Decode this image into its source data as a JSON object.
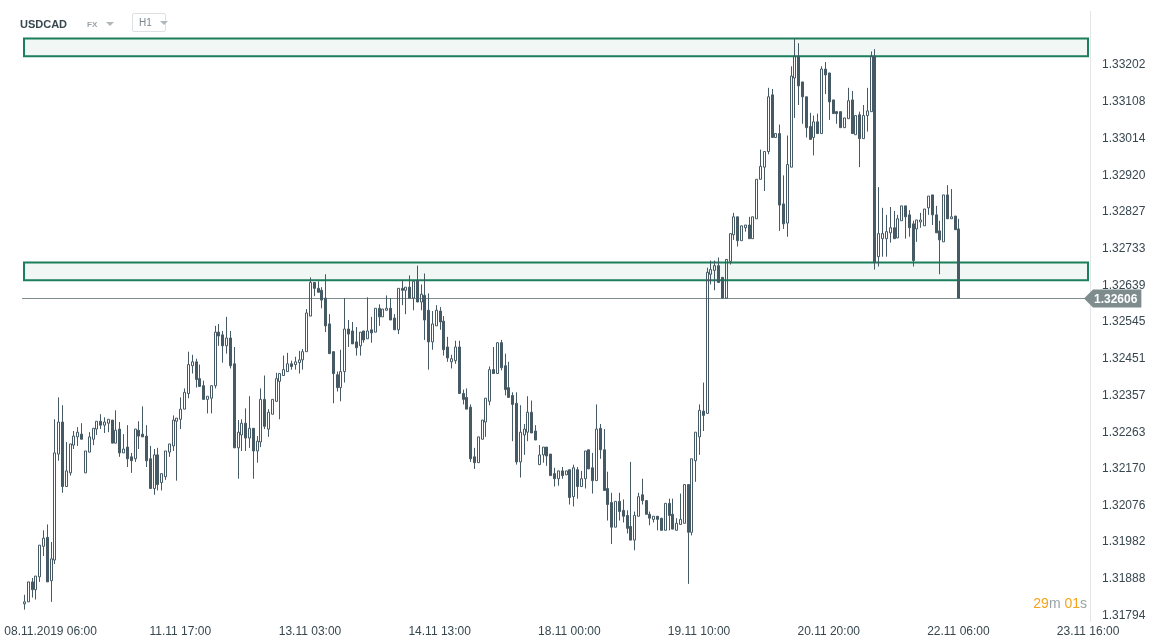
{
  "chart_data": {
    "type": "candlestick",
    "title": "USDCAD",
    "annotations": [
      "FX",
      "H1",
      "29m 01s"
    ],
    "color": "#455a64",
    "categories": [
      null,
      null,
      null,
      null,
      null,
      null,
      null,
      "08.11.2019 06:00",
      null,
      null,
      null,
      null,
      null,
      null,
      null,
      null,
      null,
      null,
      null,
      null,
      null,
      null,
      null,
      null,
      null,
      null,
      null,
      null,
      null,
      null,
      null,
      null,
      null,
      null,
      null,
      null,
      null,
      null,
      null,
      null,
      null,
      "11.11 17:00",
      null,
      null,
      null,
      null,
      null,
      null,
      null,
      null,
      null,
      null,
      null,
      null,
      null,
      null,
      null,
      null,
      null,
      null,
      null,
      null,
      null,
      null,
      null,
      null,
      null,
      null,
      null,
      null,
      null,
      null,
      null,
      null,
      null,
      "13.11 03:00",
      null,
      null,
      null,
      null,
      null,
      null,
      null,
      null,
      null,
      null,
      null,
      null,
      null,
      null,
      null,
      null,
      null,
      null,
      null,
      null,
      null,
      null,
      null,
      null,
      null,
      null,
      null,
      null,
      null,
      null,
      null,
      null,
      null,
      "14.11 13:00",
      null,
      null,
      null,
      null,
      null,
      null,
      null,
      null,
      null,
      null,
      null,
      null,
      null,
      null,
      null,
      null,
      null,
      null,
      null,
      null,
      null,
      null,
      null,
      null,
      null,
      null,
      null,
      null,
      null,
      null,
      null,
      null,
      null,
      "18.11 00:00",
      null,
      null,
      null,
      null,
      null,
      null,
      null,
      null,
      null,
      null,
      null,
      null,
      null,
      null,
      null,
      null,
      null,
      null,
      null,
      null,
      null,
      null,
      null,
      null,
      null,
      null,
      null,
      null,
      null,
      null,
      null,
      null,
      null,
      "19.11 10:00",
      null,
      null,
      null,
      null,
      null,
      null,
      null,
      null,
      null,
      null,
      null,
      null,
      null,
      null,
      null,
      null,
      null,
      null,
      null,
      null,
      null,
      null,
      null,
      null,
      null,
      null,
      null,
      null,
      null,
      null,
      null,
      null,
      null,
      "20.11 20:00",
      null,
      null,
      null,
      null,
      null,
      null,
      null,
      null,
      null,
      null,
      null,
      null,
      null,
      null,
      null,
      null,
      null,
      null,
      null,
      null,
      null,
      null,
      null,
      null,
      null,
      null,
      null,
      null,
      null,
      null,
      null,
      null,
      null,
      "22.11 06:00",
      null,
      null,
      null,
      null,
      null,
      null,
      null,
      null,
      null,
      null,
      null,
      null,
      null,
      null,
      null,
      null,
      null,
      null,
      null,
      null,
      null,
      null,
      null,
      null,
      null,
      null,
      null,
      null,
      null,
      null,
      null,
      null,
      null,
      "23.11 16:00"
    ],
    "ohlc": [
      [
        1.31824,
        1.31847,
        1.31809,
        1.31829
      ],
      [
        1.31829,
        1.31885,
        1.31829,
        1.3188
      ],
      [
        1.3188,
        1.3189,
        1.3184,
        1.3186
      ],
      [
        1.3186,
        1.31898,
        1.31835,
        1.31895
      ],
      [
        1.31893,
        1.31979,
        1.3188,
        1.31974
      ],
      [
        1.31971,
        1.32012,
        1.31946,
        1.31992
      ],
      [
        1.31994,
        1.32027,
        1.3188,
        1.3188
      ],
      [
        1.31883,
        1.31982,
        1.31829,
        1.31939
      ],
      [
        1.31936,
        1.32296,
        1.31926,
        1.3221
      ],
      [
        1.32207,
        1.32352,
        1.3219,
        1.32289
      ],
      [
        1.32289,
        1.32332,
        1.32108,
        1.32124
      ],
      [
        1.32124,
        1.32238,
        1.32124,
        1.32164
      ],
      [
        1.32159,
        1.32238,
        1.32152,
        1.32233
      ],
      [
        1.3223,
        1.32266,
        1.3222,
        1.32253
      ],
      [
        1.32251,
        1.32276,
        1.32228,
        1.32263
      ],
      [
        1.32258,
        1.32286,
        1.32245,
        1.32245
      ],
      [
        1.32159,
        1.32215,
        1.32154,
        1.32215
      ],
      [
        1.32212,
        1.32263,
        1.32212,
        1.32251
      ],
      [
        1.32245,
        1.32278,
        1.3223,
        1.32273
      ],
      [
        1.32271,
        1.32296,
        1.32256,
        1.32291
      ],
      [
        1.32291,
        1.32309,
        1.32271,
        1.32281
      ],
      [
        1.32281,
        1.32301,
        1.32261,
        1.32289
      ],
      [
        1.32286,
        1.32299,
        1.32263,
        1.32296
      ],
      [
        1.32294,
        1.32299,
        1.32235,
        1.32235
      ],
      [
        1.32235,
        1.32319,
        1.3223,
        1.32268
      ],
      [
        1.32271,
        1.32289,
        1.322,
        1.3221
      ],
      [
        1.3221,
        1.32258,
        1.3221,
        1.3222
      ],
      [
        1.32225,
        1.32281,
        1.32174,
        1.32195
      ],
      [
        1.322,
        1.3221,
        1.32159,
        1.3219
      ],
      [
        1.32195,
        1.32273,
        1.32187,
        1.32271
      ],
      [
        1.32268,
        1.32291,
        1.3222,
        1.32253
      ],
      [
        1.32258,
        1.32329,
        1.32251,
        1.32251
      ],
      [
        1.32253,
        1.32281,
        1.32174,
        1.3219
      ],
      [
        1.32195,
        1.32228,
        1.32119,
        1.32119
      ],
      [
        1.32119,
        1.3222,
        1.32103,
        1.32205
      ],
      [
        1.32205,
        1.32223,
        1.32114,
        1.32129
      ],
      [
        1.32134,
        1.32159,
        1.32114,
        1.32157
      ],
      [
        1.32149,
        1.3222,
        1.32141,
        1.32215
      ],
      [
        1.32212,
        1.32235,
        1.322,
        1.32233
      ],
      [
        1.32228,
        1.32306,
        1.32215,
        1.32294
      ],
      [
        1.32291,
        1.32301,
        1.32139,
        1.32299
      ],
      [
        1.32296,
        1.32352,
        1.32271,
        1.32322
      ],
      [
        1.32322,
        1.32375,
        1.32322,
        1.32365
      ],
      [
        1.32362,
        1.32469,
        1.3235,
        1.32436
      ],
      [
        1.32433,
        1.32461,
        1.32413,
        1.32443
      ],
      [
        1.32443,
        1.32451,
        1.32377,
        1.32398
      ],
      [
        1.324,
        1.32436,
        1.32377,
        1.3238
      ],
      [
        1.32382,
        1.32395,
        1.32347,
        1.32347
      ],
      [
        1.32347,
        1.32355,
        1.32311,
        1.32355
      ],
      [
        1.3235,
        1.32382,
        1.32311,
        1.32382
      ],
      [
        1.32382,
        1.32535,
        1.32375,
        1.32519
      ],
      [
        1.32519,
        1.3254,
        1.32484,
        1.32509
      ],
      [
        1.32512,
        1.32522,
        1.32441,
        1.32484
      ],
      [
        1.32484,
        1.32558,
        1.32464,
        1.32504
      ],
      [
        1.32504,
        1.32522,
        1.32426,
        1.32433
      ],
      [
        1.32438,
        1.32481,
        1.32223,
        1.32223
      ],
      [
        1.32223,
        1.32294,
        1.32144,
        1.32263
      ],
      [
        1.32256,
        1.32296,
        1.32215,
        1.32286
      ],
      [
        1.32286,
        1.32324,
        1.32215,
        1.32248
      ],
      [
        1.32248,
        1.32355,
        1.32223,
        1.32273
      ],
      [
        1.32273,
        1.32276,
        1.32144,
        1.32215
      ],
      [
        1.32215,
        1.32253,
        1.32185,
        1.3224
      ],
      [
        1.32238,
        1.32375,
        1.32225,
        1.32347
      ],
      [
        1.32347,
        1.32408,
        1.32271,
        1.32278
      ],
      [
        1.32271,
        1.32322,
        1.32251,
        1.32314
      ],
      [
        1.32309,
        1.3235,
        1.32306,
        1.32347
      ],
      [
        1.32342,
        1.32415,
        1.32342,
        1.324
      ],
      [
        1.32393,
        1.32415,
        1.32296,
        1.32413
      ],
      [
        1.32408,
        1.32459,
        1.32408,
        1.32423
      ],
      [
        1.32418,
        1.32466,
        1.32418,
        1.32438
      ],
      [
        1.32438,
        1.32446,
        1.32423,
        1.32431
      ],
      [
        1.32436,
        1.32456,
        1.32423,
        1.32443
      ],
      [
        1.32441,
        1.32471,
        1.32413,
        1.32448
      ],
      [
        1.32448,
        1.32476,
        1.32423,
        1.32469
      ],
      [
        1.32469,
        1.32578,
        1.32469,
        1.32568
      ],
      [
        1.3256,
        1.32659,
        1.3256,
        1.32646
      ],
      [
        1.32646,
        1.32651,
        1.32611,
        1.32631
      ],
      [
        1.32631,
        1.32649,
        1.32618,
        1.32621
      ],
      [
        1.32626,
        1.32634,
        1.3258,
        1.32601
      ],
      [
        1.32606,
        1.32667,
        1.32519,
        1.32535
      ],
      [
        1.3254,
        1.32565,
        1.32464,
        1.32464
      ],
      [
        1.32469,
        1.32474,
        1.32337,
        1.32413
      ],
      [
        1.3241,
        1.32418,
        1.32367,
        1.32377
      ],
      [
        1.32377,
        1.32474,
        1.32342,
        1.32418
      ],
      [
        1.32418,
        1.32606,
        1.3239,
        1.32527
      ],
      [
        1.32527,
        1.3255,
        1.32481,
        1.32514
      ],
      [
        1.32522,
        1.32545,
        1.32484,
        1.32489
      ],
      [
        1.32494,
        1.32532,
        1.32459,
        1.32479
      ],
      [
        1.32484,
        1.32522,
        1.32459,
        1.32519
      ],
      [
        1.32522,
        1.32525,
        1.32492,
        1.32499
      ],
      [
        1.32502,
        1.32608,
        1.32499,
        1.32522
      ],
      [
        1.32525,
        1.32558,
        1.32492,
        1.32517
      ],
      [
        1.32519,
        1.32583,
        1.32517,
        1.3258
      ],
      [
        1.3258,
        1.3259,
        1.32535,
        1.32558
      ],
      [
        1.32558,
        1.32578,
        1.32558,
        1.32578
      ],
      [
        1.32575,
        1.32613,
        1.3257,
        1.3258
      ],
      [
        1.3258,
        1.32606,
        1.32547,
        1.3255
      ],
      [
        1.32555,
        1.32565,
        1.32525,
        1.32525
      ],
      [
        1.32525,
        1.32636,
        1.32514,
        1.32631
      ],
      [
        1.32631,
        1.32651,
        1.32588,
        1.32626
      ],
      [
        1.32626,
        1.32639,
        1.32565,
        1.32634
      ],
      [
        1.32634,
        1.32664,
        1.32603,
        1.32606
      ],
      [
        1.32606,
        1.32651,
        1.32575,
        1.32649
      ],
      [
        1.32651,
        1.32689,
        1.32596,
        1.32596
      ],
      [
        1.32596,
        1.32641,
        1.32575,
        1.32616
      ],
      [
        1.32613,
        1.32669,
        1.32499,
        1.3255
      ],
      [
        1.32575,
        1.32618,
        1.32423,
        1.32494
      ],
      [
        1.32494,
        1.32573,
        1.32474,
        1.3254
      ],
      [
        1.32535,
        1.32588,
        1.32535,
        1.32575
      ],
      [
        1.32573,
        1.32583,
        1.32525,
        1.32545
      ],
      [
        1.32547,
        1.3256,
        1.32459,
        1.32474
      ],
      [
        1.32481,
        1.32507,
        1.32443,
        1.32453
      ],
      [
        1.32443,
        1.32461,
        1.32426,
        1.32451
      ],
      [
        1.32446,
        1.32497,
        1.32438,
        1.32481
      ],
      [
        1.32481,
        1.32497,
        1.32362,
        1.32362
      ],
      [
        1.32362,
        1.32372,
        1.32334,
        1.32347
      ],
      [
        1.32352,
        1.32375,
        1.32322,
        1.32322
      ],
      [
        1.32327,
        1.32334,
        1.32187,
        1.32195
      ],
      [
        1.322,
        1.32223,
        1.32169,
        1.32185
      ],
      [
        1.32185,
        1.32251,
        1.32185,
        1.32251
      ],
      [
        1.32245,
        1.32294,
        1.3224,
        1.32294
      ],
      [
        1.32289,
        1.3235,
        1.32251,
        1.3235
      ],
      [
        1.32342,
        1.32431,
        1.32332,
        1.32423
      ],
      [
        1.32423,
        1.32481,
        1.32408,
        1.32413
      ],
      [
        1.32413,
        1.32494,
        1.3241,
        1.32492
      ],
      [
        1.32492,
        1.32499,
        1.32421,
        1.32428
      ],
      [
        1.32433,
        1.32464,
        1.32357,
        1.32372
      ],
      [
        1.32377,
        1.32443,
        1.32347,
        1.32352
      ],
      [
        1.32357,
        1.32365,
        1.3224,
        1.32334
      ],
      [
        1.32337,
        1.32365,
        1.3218,
        1.32187
      ],
      [
        1.32187,
        1.32332,
        1.32147,
        1.32263
      ],
      [
        1.32256,
        1.32284,
        1.32205,
        1.32271
      ],
      [
        1.32263,
        1.32355,
        1.3224,
        1.32314
      ],
      [
        1.32314,
        1.32344,
        1.32258,
        1.32261
      ],
      [
        1.32266,
        1.32281,
        1.3224,
        1.32243
      ],
      [
        1.3218,
        1.3223,
        1.3218,
        1.32205
      ],
      [
        1.32205,
        1.32225,
        1.32185,
        1.32225
      ],
      [
        1.32225,
        1.32225,
        1.32177,
        1.32202
      ],
      [
        1.32207,
        1.32207,
        1.32152,
        1.32152
      ],
      [
        1.32157,
        1.32172,
        1.32124,
        1.32144
      ],
      [
        1.32144,
        1.32169,
        1.32126,
        1.32164
      ],
      [
        1.32164,
        1.32174,
        1.32144,
        1.32152
      ],
      [
        1.32154,
        1.32169,
        1.32149,
        1.32164
      ],
      [
        1.32167,
        1.32167,
        1.32078,
        1.32096
      ],
      [
        1.32098,
        1.3218,
        1.32073,
        1.32172
      ],
      [
        1.32167,
        1.32174,
        1.32093,
        1.32124
      ],
      [
        1.32124,
        1.32164,
        1.32124,
        1.32144
      ],
      [
        1.32144,
        1.3222,
        1.32119,
        1.32215
      ],
      [
        1.32218,
        1.32218,
        1.32169,
        1.32169
      ],
      [
        1.32172,
        1.3221,
        1.32106,
        1.32139
      ],
      [
        1.32139,
        1.32334,
        1.32139,
        1.32271
      ],
      [
        1.32273,
        1.32284,
        1.32195,
        1.32218
      ],
      [
        1.32218,
        1.32271,
        1.32111,
        1.32114
      ],
      [
        1.32119,
        1.32162,
        1.32037,
        1.32078
      ],
      [
        1.32083,
        1.32108,
        1.31977,
        1.3202
      ],
      [
        1.3202,
        1.32088,
        1.3202,
        1.32086
      ],
      [
        1.32086,
        1.32108,
        1.32037,
        1.3206
      ],
      [
        1.32063,
        1.32091,
        1.32032,
        1.32048
      ],
      [
        1.3205,
        1.32063,
        1.32004,
        1.32017
      ],
      [
        1.32022,
        1.32187,
        1.31987,
        1.31987
      ],
      [
        1.31987,
        1.3206,
        1.31961,
        1.3205
      ],
      [
        1.32048,
        1.32108,
        1.32045,
        1.32098
      ],
      [
        1.32103,
        1.32144,
        1.32078,
        1.32088
      ],
      [
        1.32088,
        1.32091,
        1.3205,
        1.32053
      ],
      [
        1.32053,
        1.3206,
        1.32025,
        1.32043
      ],
      [
        1.3204,
        1.32048,
        1.32032,
        1.32048
      ],
      [
        1.32048,
        1.32053,
        1.32012,
        1.3204
      ],
      [
        1.32043,
        1.32045,
        1.32007,
        1.32012
      ],
      [
        1.32012,
        1.32083,
        1.32012,
        1.32081
      ],
      [
        1.32081,
        1.32093,
        1.32012,
        1.3205
      ],
      [
        1.32053,
        1.32093,
        1.32015,
        1.32015
      ],
      [
        1.32012,
        1.32043,
        1.3201,
        1.3203
      ],
      [
        1.32027,
        1.32106,
        1.32027,
        1.3204
      ],
      [
        1.3203,
        1.32134,
        1.3203,
        1.32129
      ],
      [
        1.32129,
        1.32134,
        1.31875,
        1.32007
      ],
      [
        1.32007,
        1.32197,
        1.31999,
        1.32195
      ],
      [
        1.3219,
        1.32266,
        1.32136,
        1.32263
      ],
      [
        1.32251,
        1.32334,
        1.32205,
        1.32319
      ],
      [
        1.32317,
        1.3239,
        1.32266,
        1.32306
      ],
      [
        1.32311,
        1.32684,
        1.32306,
        1.32672
      ],
      [
        1.32667,
        1.32702,
        1.32641,
        1.32679
      ],
      [
        1.32677,
        1.32702,
        1.32626,
        1.32689
      ],
      [
        1.32689,
        1.3271,
        1.32644,
        1.32646
      ],
      [
        1.32659,
        1.32662,
        1.32603,
        1.32606
      ],
      [
        1.32606,
        1.32707,
        1.32606,
        1.32705
      ],
      [
        1.327,
        1.32776,
        1.32692,
        1.32771
      ],
      [
        1.32768,
        1.32824,
        1.32755,
        1.32814
      ],
      [
        1.32814,
        1.32819,
        1.32738,
        1.32753
      ],
      [
        1.32753,
        1.32793,
        1.32753,
        1.32791
      ],
      [
        1.32786,
        1.32796,
        1.32776,
        1.32793
      ],
      [
        1.32793,
        1.32814,
        1.32758,
        1.32758
      ],
      [
        1.32758,
        1.32814,
        1.32758,
        1.32814
      ],
      [
        1.32809,
        1.3291,
        1.32809,
        1.3291
      ],
      [
        1.3291,
        1.32986,
        1.3291,
        1.32943
      ],
      [
        1.32941,
        1.32986,
        1.3288,
        1.32981
      ],
      [
        1.32981,
        1.33144,
        1.32974,
        1.33121
      ],
      [
        1.33126,
        1.33141,
        1.33017,
        1.33017
      ],
      [
        1.33017,
        1.33027,
        1.33014,
        1.33027
      ],
      [
        1.33027,
        1.3305,
        1.32778,
        1.32844
      ],
      [
        1.32847,
        1.3292,
        1.32783,
        1.32796
      ],
      [
        1.32798,
        1.33022,
        1.32763,
        1.32948
      ],
      [
        1.32941,
        1.33199,
        1.32941,
        1.33174
      ],
      [
        1.33169,
        1.3327,
        1.33067,
        1.33225
      ],
      [
        1.33225,
        1.33258,
        1.331,
        1.33149
      ],
      [
        1.33159,
        1.33159,
        1.33052,
        1.33121
      ],
      [
        1.33121,
        1.33126,
        1.33017,
        1.33042
      ],
      [
        1.33045,
        1.3308,
        1.33012,
        1.33012
      ],
      [
        1.33017,
        1.33073,
        1.32971,
        1.33057
      ],
      [
        1.33057,
        1.33078,
        1.33027,
        1.33027
      ],
      [
        1.33027,
        1.33199,
        1.33027,
        1.33192
      ],
      [
        1.33192,
        1.3321,
        1.33128,
        1.33177
      ],
      [
        1.33182,
        1.33184,
        1.33062,
        1.33108
      ],
      [
        1.33113,
        1.33113,
        1.33078,
        1.33078
      ],
      [
        1.33083,
        1.33088,
        1.33052,
        1.33078
      ],
      [
        1.33083,
        1.33083,
        1.3304,
        1.33042
      ],
      [
        1.33042,
        1.3307,
        1.3304,
        1.33067
      ],
      [
        1.33065,
        1.33144,
        1.33062,
        1.33111
      ],
      [
        1.33113,
        1.33136,
        1.33027,
        1.33027
      ],
      [
        1.33024,
        1.33075,
        1.33022,
        1.33073
      ],
      [
        1.33075,
        1.33083,
        1.32941,
        1.33014
      ],
      [
        1.33014,
        1.331,
        1.33012,
        1.33073
      ],
      [
        1.33073,
        1.33144,
        1.33032,
        1.33085
      ],
      [
        1.33083,
        1.33237,
        1.33083,
        1.33225
      ],
      [
        1.33225,
        1.33243,
        1.32679,
        1.32697
      ],
      [
        1.32712,
        1.3289,
        1.32687,
        1.32771
      ],
      [
        1.32758,
        1.32837,
        1.32712,
        1.32771
      ],
      [
        1.32758,
        1.32819,
        1.32712,
        1.32776
      ],
      [
        1.32773,
        1.32839,
        1.32748,
        1.32786
      ],
      [
        1.32786,
        1.32829,
        1.32758,
        1.32758
      ],
      [
        1.3276,
        1.32819,
        1.32758,
        1.32809
      ],
      [
        1.32804,
        1.32844,
        1.32804,
        1.32842
      ],
      [
        1.32842,
        1.32842,
        1.32758,
        1.32814
      ],
      [
        1.32819,
        1.32831,
        1.32763,
        1.32786
      ],
      [
        1.32796,
        1.32804,
        1.32687,
        1.32702
      ],
      [
        1.32783,
        1.32811,
        1.3275,
        1.32806
      ],
      [
        1.32801,
        1.32824,
        1.32786,
        1.32806
      ],
      [
        1.32791,
        1.32839,
        1.32791,
        1.32834
      ],
      [
        1.32837,
        1.32867,
        1.32819,
        1.32867
      ],
      [
        1.3287,
        1.32872,
        1.32793,
        1.32819
      ],
      [
        1.32819,
        1.32842,
        1.32768,
        1.32773
      ],
      [
        1.32778,
        1.32804,
        1.32667,
        1.32755
      ],
      [
        1.3275,
        1.32872,
        1.3275,
        1.3287
      ],
      [
        1.3287,
        1.32895,
        1.32809,
        1.32809
      ],
      [
        1.32809,
        1.32885,
        1.32804,
        1.32814
      ],
      [
        1.32816,
        1.32819,
        1.32778,
        1.32781
      ],
      [
        1.32783,
        1.32809,
        1.32606,
        1.32606
      ],
      null,
      null,
      null,
      null,
      null,
      null,
      null,
      null,
      null,
      null,
      null,
      null,
      null,
      null,
      null,
      null,
      null,
      null,
      null,
      null,
      null,
      null,
      null,
      null,
      null,
      null,
      null,
      null,
      null,
      null,
      null,
      null,
      null,
      null
    ],
    "ylim": [
      1.3178,
      1.3334
    ],
    "yticks": [
      1.33202,
      1.33108,
      1.33014,
      {
        "value": 1.3292,
        "label": "1.32920"
      },
      1.32827,
      1.32733,
      1.32639,
      1.32545,
      1.32451,
      1.32357,
      1.32263,
      {
        "value": 1.3217,
        "label": "1.32170"
      },
      1.32076,
      1.31982,
      1.31888,
      1.31794
    ],
    "ref_lines": [
      {
        "axis": "y",
        "value": 1.32606,
        "label": "1.32606",
        "color": "#7f8c8d"
      }
    ],
    "bands": [
      {
        "axis": "y",
        "from": 1.32652,
        "to": 1.32697,
        "color": "#1b7f5b"
      },
      {
        "axis": "y",
        "from": 1.33225,
        "to": 1.3327,
        "color": "#1b7f5b"
      }
    ],
    "grid": false
  }
}
